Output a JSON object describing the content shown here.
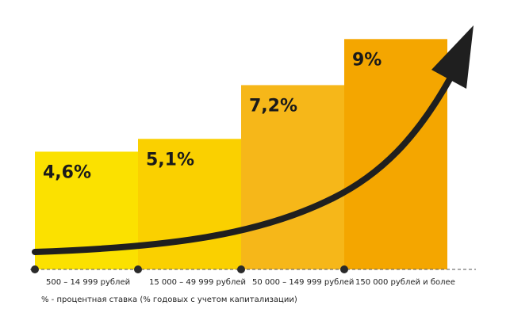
{
  "chart_data": {
    "type": "bar",
    "categories": [
      "500 – 14 999 рублей",
      "15 000 – 49 999 рублей",
      "50 000 – 149 999 рублей",
      "150 000 рублей и более"
    ],
    "values": [
      4.6,
      5.1,
      7.2,
      9
    ],
    "value_labels": [
      "4,6%",
      "5,1%",
      "7,2%",
      "9%"
    ],
    "bar_colors": [
      "#fbe100",
      "#fad000",
      "#f6b719",
      "#f4a600"
    ],
    "arrow_color": "#1f1f1f",
    "note": "% - процентная ставка (% годовых с учетом капитализации)",
    "xlabel": "",
    "ylabel": "",
    "legend": "none",
    "grid": false
  }
}
